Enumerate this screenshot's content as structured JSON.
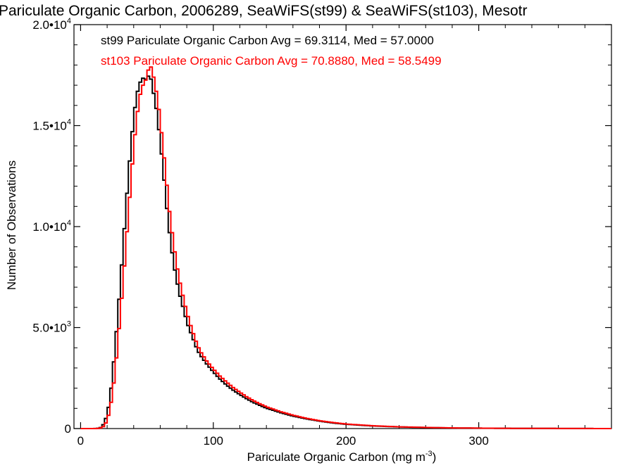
{
  "chart_data": {
    "type": "line",
    "title": "Pariculate Organic Carbon, 2006289, SeaWiFS(st99) & SeaWiFS(st103), Mesotr",
    "xlabel": "Pariculate Organic Carbon (mg m",
    "xlabel_sup": "-3",
    "xlabel_close": ")",
    "ylabel": "Number of Observations",
    "xlim": [
      -5,
      400
    ],
    "ylim": [
      0,
      20000
    ],
    "x_ticks": [
      {
        "value": 0,
        "label": "0"
      },
      {
        "value": 100,
        "label": "100"
      },
      {
        "value": 200,
        "label": "200"
      },
      {
        "value": 300,
        "label": "300"
      }
    ],
    "y_ticks": [
      {
        "value": 0,
        "label": "0",
        "sup": ""
      },
      {
        "value": 5000,
        "label": "5.0•10",
        "sup": "3"
      },
      {
        "value": 10000,
        "label": "1.0•10",
        "sup": "4"
      },
      {
        "value": 15000,
        "label": "1.5•10",
        "sup": "4"
      },
      {
        "value": 20000,
        "label": "2.0•10",
        "sup": "4"
      }
    ],
    "grid": false,
    "legend_position": "top-left",
    "step": true,
    "series": [
      {
        "name": "st99 Pariculate Organic Carbon Avg = 69.3114, Med = 57.0000",
        "color": "#000000",
        "points": [
          [
            0,
            0
          ],
          [
            10,
            0
          ],
          [
            14,
            20
          ],
          [
            16,
            80
          ],
          [
            18,
            300
          ],
          [
            20,
            700
          ],
          [
            22,
            1400
          ],
          [
            24,
            2600
          ],
          [
            26,
            4000
          ],
          [
            28,
            5600
          ],
          [
            30,
            7200
          ],
          [
            32,
            9000
          ],
          [
            34,
            10800
          ],
          [
            36,
            12500
          ],
          [
            38,
            14000
          ],
          [
            40,
            15400
          ],
          [
            42,
            16400
          ],
          [
            44,
            17000
          ],
          [
            46,
            17300
          ],
          [
            48,
            17400
          ],
          [
            50,
            17200
          ],
          [
            52,
            17700
          ],
          [
            54,
            16900
          ],
          [
            56,
            16300
          ],
          [
            58,
            15400
          ],
          [
            60,
            14200
          ],
          [
            62,
            13000
          ],
          [
            64,
            11600
          ],
          [
            66,
            10200
          ],
          [
            68,
            9200
          ],
          [
            70,
            8200
          ],
          [
            72,
            7500
          ],
          [
            74,
            6800
          ],
          [
            76,
            6300
          ],
          [
            78,
            5800
          ],
          [
            80,
            5300
          ],
          [
            82,
            4900
          ],
          [
            84,
            4600
          ],
          [
            86,
            4200
          ],
          [
            88,
            3900
          ],
          [
            90,
            3650
          ],
          [
            95,
            3200
          ],
          [
            100,
            2800
          ],
          [
            105,
            2450
          ],
          [
            110,
            2150
          ],
          [
            115,
            1900
          ],
          [
            120,
            1680
          ],
          [
            125,
            1480
          ],
          [
            130,
            1300
          ],
          [
            135,
            1150
          ],
          [
            140,
            1010
          ],
          [
            150,
            800
          ],
          [
            160,
            620
          ],
          [
            170,
            480
          ],
          [
            180,
            370
          ],
          [
            190,
            280
          ],
          [
            200,
            210
          ],
          [
            220,
            130
          ],
          [
            240,
            80
          ],
          [
            260,
            50
          ],
          [
            280,
            30
          ],
          [
            300,
            20
          ],
          [
            330,
            10
          ],
          [
            360,
            5
          ],
          [
            400,
            0
          ]
        ]
      },
      {
        "name": "st103 Pariculate Organic Carbon Avg = 70.8880, Med = 58.5499",
        "color": "#ff0000",
        "points": [
          [
            0,
            0
          ],
          [
            12,
            0
          ],
          [
            16,
            40
          ],
          [
            18,
            150
          ],
          [
            20,
            400
          ],
          [
            22,
            900
          ],
          [
            24,
            1700
          ],
          [
            26,
            2800
          ],
          [
            28,
            4200
          ],
          [
            30,
            5700
          ],
          [
            32,
            7200
          ],
          [
            34,
            8900
          ],
          [
            36,
            10600
          ],
          [
            38,
            12300
          ],
          [
            40,
            13900
          ],
          [
            42,
            15200
          ],
          [
            44,
            16200
          ],
          [
            46,
            16900
          ],
          [
            48,
            17100
          ],
          [
            50,
            17400
          ],
          [
            52,
            18100
          ],
          [
            54,
            17700
          ],
          [
            56,
            17100
          ],
          [
            58,
            16300
          ],
          [
            60,
            15300
          ],
          [
            62,
            14000
          ],
          [
            64,
            12800
          ],
          [
            66,
            11300
          ],
          [
            68,
            10200
          ],
          [
            70,
            9200
          ],
          [
            72,
            8300
          ],
          [
            74,
            7500
          ],
          [
            76,
            6900
          ],
          [
            78,
            6300
          ],
          [
            80,
            5800
          ],
          [
            82,
            5300
          ],
          [
            84,
            4900
          ],
          [
            86,
            4500
          ],
          [
            88,
            4150
          ],
          [
            90,
            3850
          ],
          [
            95,
            3350
          ],
          [
            100,
            2950
          ],
          [
            105,
            2600
          ],
          [
            110,
            2300
          ],
          [
            115,
            2030
          ],
          [
            120,
            1800
          ],
          [
            125,
            1580
          ],
          [
            130,
            1390
          ],
          [
            135,
            1230
          ],
          [
            140,
            1080
          ],
          [
            150,
            850
          ],
          [
            160,
            660
          ],
          [
            170,
            510
          ],
          [
            180,
            390
          ],
          [
            190,
            300
          ],
          [
            200,
            225
          ],
          [
            220,
            140
          ],
          [
            240,
            85
          ],
          [
            260,
            55
          ],
          [
            280,
            32
          ],
          [
            300,
            20
          ],
          [
            330,
            10
          ],
          [
            360,
            5
          ],
          [
            400,
            0
          ]
        ]
      }
    ]
  }
}
